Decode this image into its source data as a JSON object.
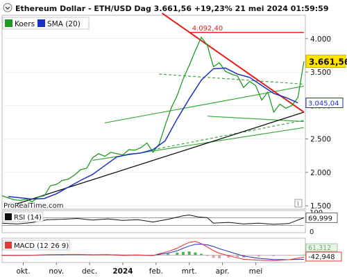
{
  "title": "Ethereum Dollar - ETH/USD Dag 3.661,56 +19,23% 21 mei 2024 01:59:59",
  "watermark": "ProRealTime.com",
  "info_icon": "i",
  "colors": {
    "price": "#1f9a1f",
    "sma": "#1a2fc4",
    "trend_red": "#e8201a",
    "trend_black": "#111111",
    "channel_green": "#3aa83a",
    "highlight": "#ffe400",
    "rsi_line": "#111111",
    "macd_hist_pos": "#4fb54f",
    "macd_hist_neg": "#e0a0a0",
    "macd_line": "#e53935",
    "signal_line": "#1a2fc4"
  },
  "chart_data": [
    {
      "type": "line",
      "legend": [
        {
          "name": "Koers",
          "color_key": "price"
        },
        {
          "name": "SMA (20)",
          "color_key": "sma"
        }
      ],
      "x_ticks": [
        {
          "label": "okt.",
          "t": 0.07,
          "bold": false
        },
        {
          "label": "nov.",
          "t": 0.18,
          "bold": false
        },
        {
          "label": "dec.",
          "t": 0.29,
          "bold": false
        },
        {
          "label": "2024",
          "t": 0.4,
          "bold": true
        },
        {
          "label": "feb.",
          "t": 0.51,
          "bold": false
        },
        {
          "label": "mrt.",
          "t": 0.62,
          "bold": false
        },
        {
          "label": "apr.",
          "t": 0.73,
          "bold": false
        },
        {
          "label": "mei",
          "t": 0.84,
          "bold": false
        }
      ],
      "ylim": [
        1450,
        4350
      ],
      "y_ticks": [
        {
          "value": 4000,
          "label": "4.000"
        },
        {
          "value": 3500,
          "label": "3.500"
        },
        {
          "value": 3000,
          "label": "3.000"
        },
        {
          "value": 2500,
          "label": "2.500"
        },
        {
          "value": 2000,
          "label": "2.000"
        },
        {
          "value": 1500,
          "label": "1.500"
        }
      ],
      "price_t": [
        0.0,
        0.02,
        0.04,
        0.06,
        0.08,
        0.1,
        0.12,
        0.14,
        0.16,
        0.18,
        0.2,
        0.22,
        0.24,
        0.26,
        0.28,
        0.3,
        0.32,
        0.34,
        0.36,
        0.38,
        0.4,
        0.42,
        0.44,
        0.46,
        0.48,
        0.5,
        0.52,
        0.54,
        0.56,
        0.58,
        0.6,
        0.62,
        0.64,
        0.66,
        0.68,
        0.7,
        0.72,
        0.74,
        0.76,
        0.78,
        0.8,
        0.82,
        0.84,
        0.86,
        0.88,
        0.9,
        0.92,
        0.94,
        0.96,
        0.98,
        1.0
      ],
      "price": [
        1650,
        1620,
        1590,
        1580,
        1600,
        1560,
        1630,
        1650,
        1800,
        1820,
        1880,
        1900,
        1960,
        2040,
        2060,
        2220,
        2280,
        2240,
        2300,
        2280,
        2260,
        2340,
        2330,
        2370,
        2440,
        2300,
        2420,
        2700,
        2960,
        3150,
        3400,
        3600,
        3820,
        4020,
        3900,
        3580,
        3640,
        3510,
        3470,
        3440,
        3270,
        3360,
        3300,
        3080,
        3200,
        2900,
        3020,
        2960,
        3000,
        3120,
        3661.56
      ],
      "price_label": "3.661,56",
      "sma_t": [
        0.02,
        0.06,
        0.1,
        0.14,
        0.18,
        0.22,
        0.26,
        0.3,
        0.34,
        0.38,
        0.42,
        0.46,
        0.5,
        0.54,
        0.58,
        0.62,
        0.66,
        0.7,
        0.74,
        0.78,
        0.82,
        0.86,
        0.9,
        0.94,
        0.98
      ],
      "sma": [
        1640,
        1620,
        1600,
        1610,
        1680,
        1780,
        1880,
        1970,
        2100,
        2230,
        2270,
        2290,
        2340,
        2470,
        2800,
        3100,
        3380,
        3550,
        3560,
        3470,
        3420,
        3300,
        3180,
        3120,
        3040
      ],
      "sma_label": "3.045,04",
      "resistance_value": 4092.4,
      "resistance_label": "4.092,40",
      "resistance_t": [
        0.62,
        1.0
      ],
      "downtrend": {
        "t": [
          0.53,
          1.0
        ],
        "values": [
          4380,
          2900
        ]
      },
      "uptrend": {
        "t": [
          0.05,
          1.0
        ],
        "values": [
          1530,
          2900
        ]
      },
      "channel_lines": [
        {
          "t": [
            0.34,
            1.0
          ],
          "values": [
            2740,
            3290
          ],
          "dashed": false
        },
        {
          "t": [
            0.3,
            1.0
          ],
          "values": [
            2180,
            2670
          ],
          "dashed": false
        },
        {
          "t": [
            0.52,
            1.0
          ],
          "values": [
            3470,
            3320
          ],
          "dashed": true
        },
        {
          "t": [
            0.68,
            1.0
          ],
          "values": [
            2840,
            2760
          ],
          "dashed": false
        },
        {
          "t": [
            0.5,
            1.0
          ],
          "values": [
            2340,
            2780
          ],
          "dashed": true
        }
      ]
    },
    {
      "type": "line",
      "legend": [
        {
          "name": "RSI (14)",
          "color_key": "rsi_line"
        }
      ],
      "ylim": [
        0,
        100
      ],
      "y_ticks": [
        {
          "value": 100,
          "label": "100"
        },
        {
          "value": 0,
          "label": "0"
        }
      ],
      "levels": [
        30,
        70
      ],
      "t": [
        0.0,
        0.05,
        0.1,
        0.15,
        0.2,
        0.25,
        0.3,
        0.35,
        0.4,
        0.45,
        0.5,
        0.55,
        0.6,
        0.62,
        0.65,
        0.68,
        0.7,
        0.75,
        0.8,
        0.85,
        0.9,
        0.95,
        1.0
      ],
      "values": [
        42,
        38,
        45,
        60,
        62,
        66,
        58,
        64,
        56,
        60,
        48,
        62,
        80,
        84,
        74,
        70,
        42,
        46,
        38,
        42,
        36,
        40,
        69.999
      ],
      "last_label": "69,999"
    },
    {
      "type": "bar",
      "legend": [
        {
          "name": "MACD (12 26 9)",
          "color_key": "macd_line"
        }
      ],
      "ylim": [
        -130,
        340
      ],
      "t": [
        0.0,
        0.05,
        0.1,
        0.15,
        0.2,
        0.25,
        0.3,
        0.35,
        0.4,
        0.45,
        0.5,
        0.52,
        0.55,
        0.58,
        0.6,
        0.62,
        0.64,
        0.66,
        0.68,
        0.7,
        0.72,
        0.75,
        0.78,
        0.8,
        0.85,
        0.9,
        0.95,
        1.0
      ],
      "hist": [
        4,
        -2,
        3,
        6,
        4,
        8,
        -3,
        5,
        -6,
        2,
        -8,
        12,
        30,
        55,
        70,
        80,
        60,
        30,
        -20,
        -60,
        -70,
        -55,
        -40,
        -50,
        -30,
        -20,
        -10,
        10
      ],
      "macd": [
        -5,
        -8,
        -2,
        10,
        12,
        15,
        5,
        10,
        -5,
        2,
        -10,
        30,
        80,
        150,
        220,
        280,
        300,
        250,
        180,
        100,
        40,
        -10,
        -60,
        -90,
        -110,
        -120,
        -100,
        -42.948
      ],
      "signal": [
        -2,
        -5,
        -3,
        5,
        8,
        12,
        8,
        9,
        0,
        2,
        -5,
        15,
        45,
        95,
        150,
        200,
        235,
        240,
        225,
        190,
        140,
        80,
        20,
        -20,
        -70,
        -95,
        -100,
        -90
      ],
      "last_labels": [
        "61,312",
        "-42,948"
      ]
    }
  ]
}
